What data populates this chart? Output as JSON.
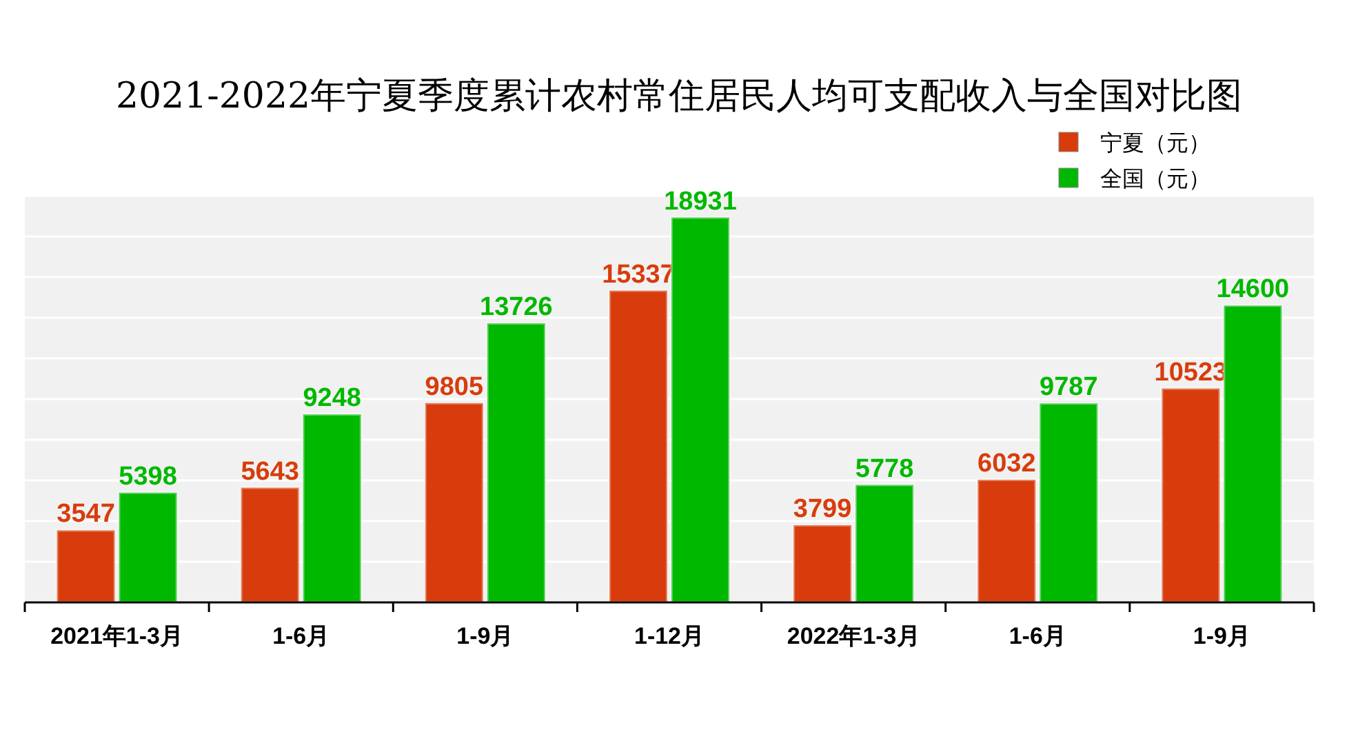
{
  "chart_data": {
    "type": "bar",
    "title": "2021-2022年宁夏季度累计农村常住居民人均可支配收入与全国对比图",
    "categories": [
      "2021年1-3月",
      "1-6月",
      "1-9月",
      "1-12月",
      "2022年1-3月",
      "1-6月",
      "1-9月"
    ],
    "series": [
      {
        "name": "宁夏（元）",
        "color": "#d83c0c",
        "values": [
          3547,
          5643,
          9805,
          15337,
          3799,
          6032,
          10523
        ]
      },
      {
        "name": "全国（元）",
        "color": "#00b800",
        "values": [
          5398,
          9248,
          13726,
          18931,
          5778,
          9787,
          14600
        ]
      }
    ],
    "ylim": [
      0,
      20000
    ],
    "yticks": [
      {
        "value": 0,
        "label": null
      },
      {
        "value": 2000,
        "label": null
      },
      {
        "value": 4000,
        "label": null
      },
      {
        "value": 6000,
        "label": null
      },
      {
        "value": 8000,
        "label": null
      },
      {
        "value": 10000,
        "label": null
      },
      {
        "value": 12000,
        "label": null
      },
      {
        "value": 14000,
        "label": null
      },
      {
        "value": 16000,
        "label": null
      },
      {
        "value": 18000,
        "label": null
      },
      {
        "value": 20000,
        "label": null
      }
    ],
    "grid": "y",
    "legend": "top right",
    "data_labels": true
  }
}
